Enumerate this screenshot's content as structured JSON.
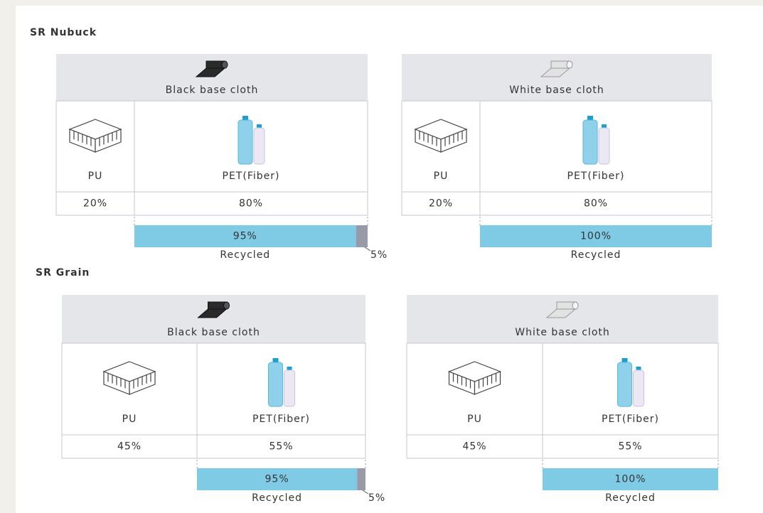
{
  "sections": [
    {
      "title": "SR Nubuck",
      "panels": [
        {
          "header": "Black base cloth",
          "materials": [
            {
              "name": "PU",
              "share": "20%"
            },
            {
              "name": "PET(Fiber)",
              "share": "80%"
            }
          ],
          "recycled": {
            "share": "95%",
            "label": "Recycled",
            "rest": "5%"
          }
        },
        {
          "header": "White base cloth",
          "materials": [
            {
              "name": "PU",
              "share": "20%"
            },
            {
              "name": "PET(Fiber)",
              "share": "80%"
            }
          ],
          "recycled": {
            "share": "100%",
            "label": "Recycled"
          }
        }
      ]
    },
    {
      "title": "SR Grain",
      "panels": [
        {
          "header": "Black base cloth",
          "materials": [
            {
              "name": "PU",
              "share": "45%"
            },
            {
              "name": "PET(Fiber)",
              "share": "55%"
            }
          ],
          "recycled": {
            "share": "95%",
            "label": "Recycled",
            "rest": "5%"
          }
        },
        {
          "header": "White base cloth",
          "materials": [
            {
              "name": "PU",
              "share": "45%"
            },
            {
              "name": "PET(Fiber)",
              "share": "55%"
            }
          ],
          "recycled": {
            "share": "100%",
            "label": "Recycled"
          }
        }
      ]
    }
  ]
}
